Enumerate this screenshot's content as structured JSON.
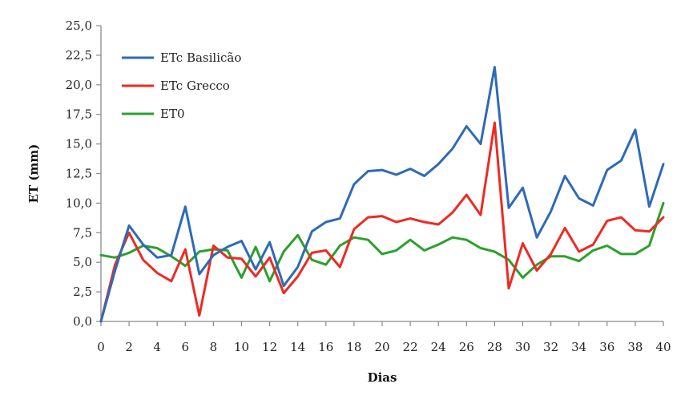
{
  "chart_data": {
    "type": "line",
    "xlabel": "Dias",
    "ylabel": "ET (mm)",
    "xlim": [
      0,
      40
    ],
    "ylim": [
      0,
      25
    ],
    "x_ticks": [
      "0",
      "2",
      "4",
      "6",
      "8",
      "10",
      "12",
      "14",
      "16",
      "18",
      "20",
      "22",
      "24",
      "26",
      "28",
      "30",
      "32",
      "34",
      "36",
      "38",
      "40"
    ],
    "y_ticks": [
      "0,0",
      "2,5",
      "5,0",
      "7,5",
      "10,0",
      "12,5",
      "15,0",
      "17,5",
      "20,0",
      "22,5",
      "25,0"
    ],
    "grid": false,
    "legend_position": "top-left",
    "x": [
      0,
      1,
      2,
      3,
      4,
      5,
      6,
      7,
      8,
      9,
      10,
      11,
      12,
      13,
      14,
      15,
      16,
      17,
      18,
      19,
      20,
      21,
      22,
      23,
      24,
      25,
      26,
      27,
      28,
      29,
      30,
      31,
      32,
      33,
      34,
      35,
      36,
      37,
      38,
      39,
      40
    ],
    "series": [
      {
        "name": "ETc Basilicão",
        "color": "#2e6ab7",
        "values": [
          0.0,
          4.3,
          8.1,
          6.5,
          5.4,
          5.6,
          9.7,
          4.0,
          5.6,
          6.3,
          6.8,
          4.4,
          6.7,
          3.0,
          4.6,
          7.6,
          8.4,
          8.7,
          11.6,
          12.7,
          12.8,
          12.4,
          12.9,
          12.3,
          13.3,
          14.6,
          16.5,
          15.0,
          21.5,
          9.6,
          11.3,
          7.1,
          9.3,
          12.3,
          10.4,
          9.8,
          12.8,
          13.6,
          16.2,
          9.7,
          13.3
        ]
      },
      {
        "name": "ETc Grecco",
        "color": "#ee2a24",
        "values": [
          0.0,
          4.8,
          7.5,
          5.2,
          4.1,
          3.4,
          6.1,
          0.5,
          6.4,
          5.4,
          5.3,
          3.8,
          5.4,
          2.4,
          3.8,
          5.8,
          6.0,
          4.6,
          7.8,
          8.8,
          8.9,
          8.4,
          8.7,
          8.4,
          8.2,
          9.2,
          10.7,
          9.0,
          16.8,
          2.8,
          6.6,
          4.3,
          5.7,
          7.9,
          5.9,
          6.5,
          8.5,
          8.8,
          7.7,
          7.6,
          8.8
        ]
      },
      {
        "name": "ET0",
        "color": "#2ca02c",
        "values": [
          5.6,
          5.4,
          5.8,
          6.4,
          6.2,
          5.5,
          4.7,
          5.9,
          6.1,
          6.0,
          3.7,
          6.3,
          3.4,
          5.9,
          7.3,
          5.2,
          4.8,
          6.4,
          7.1,
          6.9,
          5.7,
          6.0,
          6.9,
          6.0,
          6.5,
          7.1,
          6.9,
          6.2,
          5.9,
          5.2,
          3.7,
          4.8,
          5.5,
          5.5,
          5.1,
          6.0,
          6.4,
          5.7,
          5.7,
          6.4,
          10.0
        ]
      }
    ]
  }
}
